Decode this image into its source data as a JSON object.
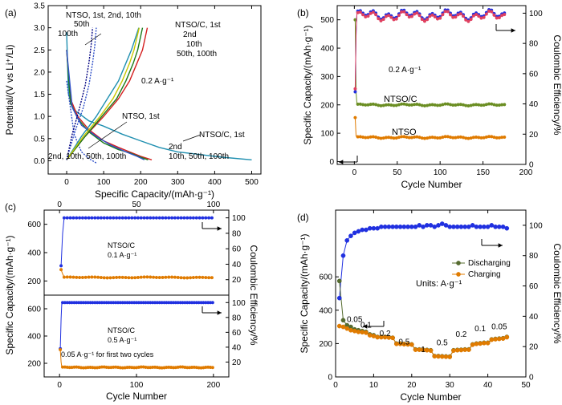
{
  "chart_data": [
    {
      "panel_label": "(a)",
      "type": "line",
      "xlabel": "Specific Capacity/(mAh·g⁻¹)",
      "ylabel": "Potential/(V vs Li⁺/Li)",
      "xlim": [
        -50,
        525
      ],
      "ylim": [
        -0.3,
        3.5
      ],
      "xticks": [
        0,
        100,
        200,
        300,
        400,
        500
      ],
      "yticks": [
        0.0,
        0.5,
        1.0,
        1.5,
        2.0,
        2.5,
        3.0,
        3.5
      ],
      "annotations": [
        "NTSO, 1st, 2nd, 10th",
        "50th",
        "100th",
        "NTSO/C, 1st",
        "2nd",
        "10th",
        "50th, 100th",
        "0.2 A·g⁻¹",
        "NTSO, 1st",
        "NTSO/C, 1st",
        "2nd",
        "10th, 50th, 100th",
        "2nd, 10th, 50th, 100th"
      ],
      "series": [
        {
          "color": "#1f8fb0",
          "x": [
            0,
            5,
            20,
            60,
            100,
            150,
            200,
            250,
            300,
            350,
            420,
            500
          ],
          "y": [
            2.9,
            1.5,
            1.15,
            0.9,
            0.78,
            0.6,
            0.45,
            0.3,
            0.2,
            0.15,
            0.08,
            0.02
          ]
        },
        {
          "color": "#d42020",
          "x": [
            0,
            10,
            30,
            60,
            100,
            140,
            170,
            200,
            230
          ],
          "y": [
            2.5,
            1.4,
            1.0,
            0.7,
            0.45,
            0.3,
            0.2,
            0.1,
            0.02
          ]
        },
        {
          "color": "#1a7a1a",
          "x": [
            0,
            10,
            30,
            60,
            100,
            140,
            170,
            200,
            220
          ],
          "y": [
            2.5,
            1.3,
            0.95,
            0.65,
            0.4,
            0.25,
            0.18,
            0.08,
            0.02
          ]
        },
        {
          "color": "#3050c8",
          "x": [
            0,
            15,
            40,
            80,
            120,
            160,
            190,
            210
          ],
          "y": [
            2.5,
            1.2,
            0.8,
            0.55,
            0.35,
            0.2,
            0.1,
            0.02
          ]
        },
        {
          "color": "#3050c8",
          "x": [
            0,
            20,
            40,
            60,
            80
          ],
          "y": [
            1.8,
            0.6,
            0.2,
            0.05,
            -0.05
          ]
        },
        {
          "color": "#1f8fb0",
          "x": [
            0,
            40,
            80,
            110,
            140,
            160,
            175,
            195
          ],
          "y": [
            0.02,
            0.55,
            1.0,
            1.4,
            1.8,
            2.2,
            2.5,
            3.0
          ]
        },
        {
          "color": "#d42020",
          "x": [
            0,
            50,
            100,
            140,
            170,
            190,
            205,
            218
          ],
          "y": [
            0.02,
            0.55,
            1.0,
            1.4,
            1.8,
            2.2,
            2.5,
            3.0
          ]
        },
        {
          "color": "#1a7a1a",
          "x": [
            0,
            50,
            95,
            135,
            160,
            180,
            192,
            205
          ],
          "y": [
            0.02,
            0.55,
            1.0,
            1.4,
            1.8,
            2.2,
            2.5,
            3.0
          ]
        },
        {
          "color": "#c8c800",
          "x": [
            0,
            45,
            90,
            125,
            150,
            170,
            182,
            196
          ],
          "y": [
            0.02,
            0.55,
            1.0,
            1.4,
            1.8,
            2.2,
            2.5,
            3.0
          ]
        },
        {
          "color": "#3050c8",
          "x": [
            0,
            20,
            45,
            60,
            70,
            76,
            80
          ],
          "y": [
            0.02,
            0.6,
            1.2,
            1.7,
            2.2,
            2.6,
            3.0
          ]
        },
        {
          "color": "#000080",
          "x": [
            0,
            15,
            35,
            50,
            60,
            66,
            70
          ],
          "y": [
            0.02,
            0.6,
            1.2,
            1.7,
            2.2,
            2.6,
            3.0
          ]
        }
      ]
    },
    {
      "panel_label": "(b)",
      "type": "scatter",
      "xlabel": "Cycle Number",
      "ylabel": "Specific Capacity/(mAh·g⁻¹)",
      "y2label": "Coulombic Efficiency/%",
      "xlim": [
        -20,
        200
      ],
      "ylim": [
        -10,
        550
      ],
      "y2lim": [
        0,
        105
      ],
      "xticks": [
        0,
        50,
        100,
        150,
        200
      ],
      "yticks": [
        0,
        100,
        200,
        300,
        400,
        500
      ],
      "y2ticks": [
        0,
        20,
        40,
        60,
        80,
        100
      ],
      "annotations": [
        "0.2 A·g⁻¹",
        "NTSO/C",
        "NTSO"
      ],
      "series": [
        {
          "role": "NTSO/C capacity",
          "color": "#6b8e23",
          "first": [
            500,
            245
          ],
          "plateau": 200,
          "n": 175
        },
        {
          "role": "NTSO capacity",
          "color": "#e07b00",
          "first": [
            155,
            90
          ],
          "plateau": 85,
          "n": 175
        },
        {
          "role": "Coulombic efficiency",
          "color": "#2030e0",
          "first": [
            48,
            85
          ],
          "plateau": 99,
          "n": 175,
          "axis": "right"
        },
        {
          "role": "Coulombic efficiency",
          "color": "#e04060",
          "first": [
            50,
            88
          ],
          "plateau": 98,
          "n": 175,
          "axis": "right"
        }
      ]
    },
    {
      "panel_label": "(c)",
      "type": "scatter",
      "xlabel": "Cycle Number",
      "ylabel": "Specific Capacity/(mAh·g⁻¹)",
      "y2label": "Coulombic Efficiency/%",
      "top": {
        "xlim": [
          -10,
          110
        ],
        "ylim": [
          100,
          700
        ],
        "y2lim": [
          0,
          110
        ],
        "xticks": [
          0,
          50,
          100
        ],
        "yticks": [
          200,
          400,
          600
        ],
        "y2ticks": [
          20,
          40,
          60,
          80,
          100
        ],
        "annotations": [
          "NTSO/C",
          "0.1 A·g⁻¹"
        ],
        "capacity_first": [
          280,
          250
        ],
        "capacity_plateau": 225,
        "efficiency_first": [
          38,
          80
        ],
        "efficiency_plateau": 100,
        "n": 100
      },
      "bottom": {
        "xlim": [
          -20,
          220
        ],
        "ylim": [
          100,
          700
        ],
        "y2lim": [
          0,
          110
        ],
        "xticks": [
          0,
          100,
          200
        ],
        "yticks": [
          200,
          400,
          600
        ],
        "y2ticks": [
          20,
          40,
          60,
          80,
          100
        ],
        "annotations": [
          "NTSO/C",
          "0.5 A·g⁻¹",
          "0.05 A·g⁻¹ for first two cycles"
        ],
        "capacity_first": [
          300,
          210
        ],
        "capacity_plateau": 170,
        "efficiency_first": [
          38,
          78
        ],
        "efficiency_plateau": 100,
        "n": 200
      }
    },
    {
      "panel_label": "(d)",
      "type": "scatter",
      "xlabel": "Cycle Number",
      "ylabel": "Specific Capacity/(mAh·g⁻¹)",
      "y2label": "Coulombic Efficiency/%",
      "xlim": [
        0,
        50
      ],
      "ylim": [
        0,
        1000
      ],
      "y2lim": [
        0,
        110
      ],
      "xticks": [
        0,
        10,
        20,
        30,
        40,
        50
      ],
      "yticks": [
        0,
        200,
        400,
        600
      ],
      "y2ticks": [
        0,
        20,
        40,
        60,
        80,
        100
      ],
      "legend": [
        "Discharging",
        "Charging"
      ],
      "legend_position": "middle-right",
      "annotations": [
        "Units: A·g⁻¹"
      ],
      "rate_labels": [
        {
          "text": "0.05",
          "x": 5,
          "y": 330
        },
        {
          "text": "0.1",
          "x": 8,
          "y": 295
        },
        {
          "text": "0.2",
          "x": 13,
          "y": 245
        },
        {
          "text": "0.5",
          "x": 18,
          "y": 195
        },
        {
          "text": "1",
          "x": 23,
          "y": 150
        },
        {
          "text": "0.5",
          "x": 28,
          "y": 190
        },
        {
          "text": "0.2",
          "x": 33,
          "y": 240
        },
        {
          "text": "0.1",
          "x": 38,
          "y": 275
        },
        {
          "text": "0.05",
          "x": 43,
          "y": 285
        }
      ],
      "discharging": [
        575,
        340,
        310,
        300,
        285,
        280,
        275,
        270,
        255,
        250,
        240,
        240,
        240,
        238,
        235,
        200,
        200,
        198,
        196,
        195,
        165,
        165,
        163,
        162,
        160,
        125,
        125,
        124,
        123,
        122,
        160,
        162,
        163,
        165,
        165,
        195,
        200,
        202,
        205,
        205,
        225,
        228,
        230,
        232,
        240
      ],
      "charging": [
        305,
        300,
        290,
        280,
        275,
        270,
        268,
        265,
        250,
        245,
        238,
        238,
        238,
        236,
        234,
        198,
        198,
        196,
        195,
        194,
        163,
        163,
        162,
        160,
        158,
        124,
        123,
        122,
        121,
        120,
        158,
        160,
        161,
        163,
        163,
        193,
        198,
        200,
        203,
        203,
        223,
        226,
        228,
        230,
        238
      ],
      "efficiency": [
        52,
        80,
        90,
        93,
        95,
        96,
        97,
        97,
        98,
        98,
        98,
        99,
        99,
        99,
        99,
        99,
        99,
        99,
        99,
        99,
        99,
        100,
        99,
        100,
        100,
        99,
        100,
        101,
        100,
        99,
        99,
        99,
        99,
        99,
        99,
        100,
        99,
        99,
        99,
        99,
        100,
        99,
        99,
        99,
        98
      ]
    }
  ]
}
